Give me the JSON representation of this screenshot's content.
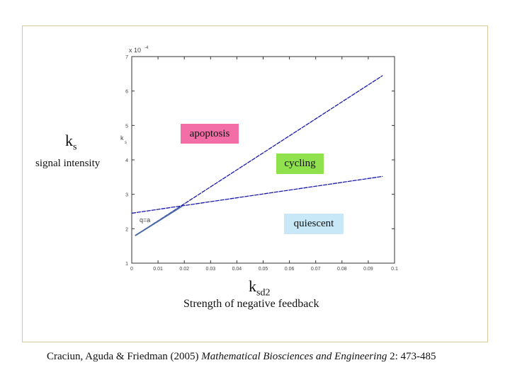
{
  "frame": {
    "border_color": "#d9c9a0"
  },
  "outer_labels": {
    "ks_symbol": "k",
    "ks_sub": "s",
    "signal_intensity": "signal intensity",
    "ksd2_symbol": "k",
    "ksd2_sub": "sd2",
    "strength": "Strength of negative feedback"
  },
  "regions": {
    "apoptosis": {
      "label": "apoptosis",
      "color": "#f36da6"
    },
    "cycling": {
      "label": "cycling",
      "color": "#8fe24e"
    },
    "quiescent": {
      "label": "quiescent",
      "color": "#c8e8f8"
    }
  },
  "citation": {
    "authors": "Craciun, Aguda & Friedman (2005) ",
    "journal": "Mathematical Biosciences and Engineering",
    "details": " 2: 473-485"
  },
  "chart_data": {
    "type": "line",
    "x_ticks": [
      "0",
      "0.01",
      "0.02",
      "0.03",
      "0.04",
      "0.05",
      "0.06",
      "0.07",
      "0.08",
      "0.09",
      "0.1"
    ],
    "y_ticks": [
      "1",
      "2",
      "3",
      "4",
      "5",
      "6",
      "7"
    ],
    "y_multiplier": "x 10",
    "y_exponent": "-4",
    "inner_ylabel": "k",
    "inner_ylabel_sub": "s",
    "annotation": "q=a",
    "xlim": [
      0,
      0.1
    ],
    "ylim": [
      1,
      7
    ],
    "grid": false,
    "series": [
      {
        "color": "#1a1aa8",
        "x": [
          0.0013,
          0.0955
        ],
        "y": [
          1.8,
          6.45
        ]
      },
      {
        "color": "#1a1aa8",
        "x": [
          0.0,
          0.0955
        ],
        "y": [
          2.45,
          3.52
        ]
      },
      {
        "color": "#4a6aa8",
        "x": [
          0.0013,
          0.019
        ],
        "y": [
          1.8,
          2.65
        ]
      }
    ]
  }
}
